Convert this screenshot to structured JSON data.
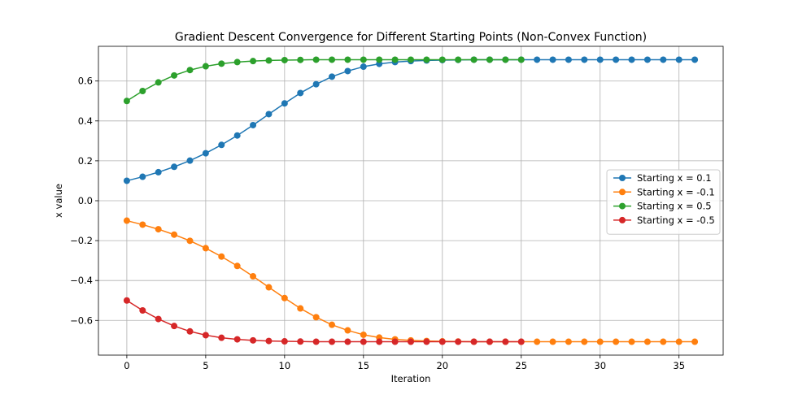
{
  "chart_data": {
    "type": "line",
    "title": "Gradient Descent Convergence for Different Starting Points (Non-Convex Function)",
    "xlabel": "Iteration",
    "ylabel": "x value",
    "xlim": [
      -1.8,
      37.8
    ],
    "ylim": [
      -0.774,
      0.774
    ],
    "xticks": [
      0,
      5,
      10,
      15,
      20,
      25,
      30,
      35
    ],
    "yticks": [
      -0.6,
      -0.4,
      -0.2,
      0.0,
      0.2,
      0.4,
      0.6
    ],
    "ytick_labels": [
      "−0.6",
      "−0.4",
      "−0.2",
      "0.0",
      "0.2",
      "0.4",
      "0.6"
    ],
    "grid": true,
    "legend_position": "center-right",
    "series": [
      {
        "name": "Starting x = 0.1",
        "color": "#1f77b4",
        "x": [
          0,
          1,
          2,
          3,
          4,
          5,
          6,
          7,
          8,
          9,
          10,
          11,
          12,
          13,
          14,
          15,
          16,
          17,
          18,
          19,
          20,
          21,
          22,
          23,
          24,
          25,
          26,
          27,
          28,
          29,
          30,
          31,
          32,
          33,
          34,
          35,
          36
        ],
        "y": [
          0.1,
          0.12,
          0.143,
          0.17,
          0.201,
          0.238,
          0.28,
          0.327,
          0.379,
          0.434,
          0.488,
          0.54,
          0.584,
          0.622,
          0.65,
          0.672,
          0.686,
          0.695,
          0.7,
          0.703,
          0.705,
          0.706,
          0.707,
          0.707,
          0.707,
          0.707,
          0.707,
          0.707,
          0.707,
          0.707,
          0.707,
          0.707,
          0.707,
          0.707,
          0.707,
          0.707,
          0.707
        ]
      },
      {
        "name": "Starting x = -0.1",
        "color": "#ff7f0e",
        "x": [
          0,
          1,
          2,
          3,
          4,
          5,
          6,
          7,
          8,
          9,
          10,
          11,
          12,
          13,
          14,
          15,
          16,
          17,
          18,
          19,
          20,
          21,
          22,
          23,
          24,
          25,
          26,
          27,
          28,
          29,
          30,
          31,
          32,
          33,
          34,
          35,
          36
        ],
        "y": [
          -0.1,
          -0.12,
          -0.143,
          -0.17,
          -0.201,
          -0.238,
          -0.28,
          -0.327,
          -0.379,
          -0.434,
          -0.488,
          -0.54,
          -0.584,
          -0.622,
          -0.65,
          -0.672,
          -0.686,
          -0.695,
          -0.7,
          -0.703,
          -0.705,
          -0.706,
          -0.707,
          -0.707,
          -0.707,
          -0.707,
          -0.707,
          -0.707,
          -0.707,
          -0.707,
          -0.707,
          -0.707,
          -0.707,
          -0.707,
          -0.707,
          -0.707,
          -0.707
        ]
      },
      {
        "name": "Starting x = 0.5",
        "color": "#2ca02c",
        "x": [
          0,
          1,
          2,
          3,
          4,
          5,
          6,
          7,
          8,
          9,
          10,
          11,
          12,
          13,
          14,
          15,
          16,
          17,
          18,
          19,
          20,
          21,
          22,
          23,
          24,
          25
        ],
        "y": [
          0.5,
          0.55,
          0.593,
          0.628,
          0.655,
          0.674,
          0.687,
          0.695,
          0.7,
          0.703,
          0.705,
          0.706,
          0.707,
          0.707,
          0.707,
          0.707,
          0.707,
          0.707,
          0.707,
          0.707,
          0.707,
          0.707,
          0.707,
          0.707,
          0.707,
          0.707
        ]
      },
      {
        "name": "Starting x = -0.5",
        "color": "#d62728",
        "x": [
          0,
          1,
          2,
          3,
          4,
          5,
          6,
          7,
          8,
          9,
          10,
          11,
          12,
          13,
          14,
          15,
          16,
          17,
          18,
          19,
          20,
          21,
          22,
          23,
          24,
          25
        ],
        "y": [
          -0.5,
          -0.55,
          -0.593,
          -0.628,
          -0.655,
          -0.674,
          -0.687,
          -0.695,
          -0.7,
          -0.703,
          -0.705,
          -0.706,
          -0.707,
          -0.707,
          -0.707,
          -0.707,
          -0.707,
          -0.707,
          -0.707,
          -0.707,
          -0.707,
          -0.707,
          -0.707,
          -0.707,
          -0.707,
          -0.707
        ]
      }
    ]
  }
}
